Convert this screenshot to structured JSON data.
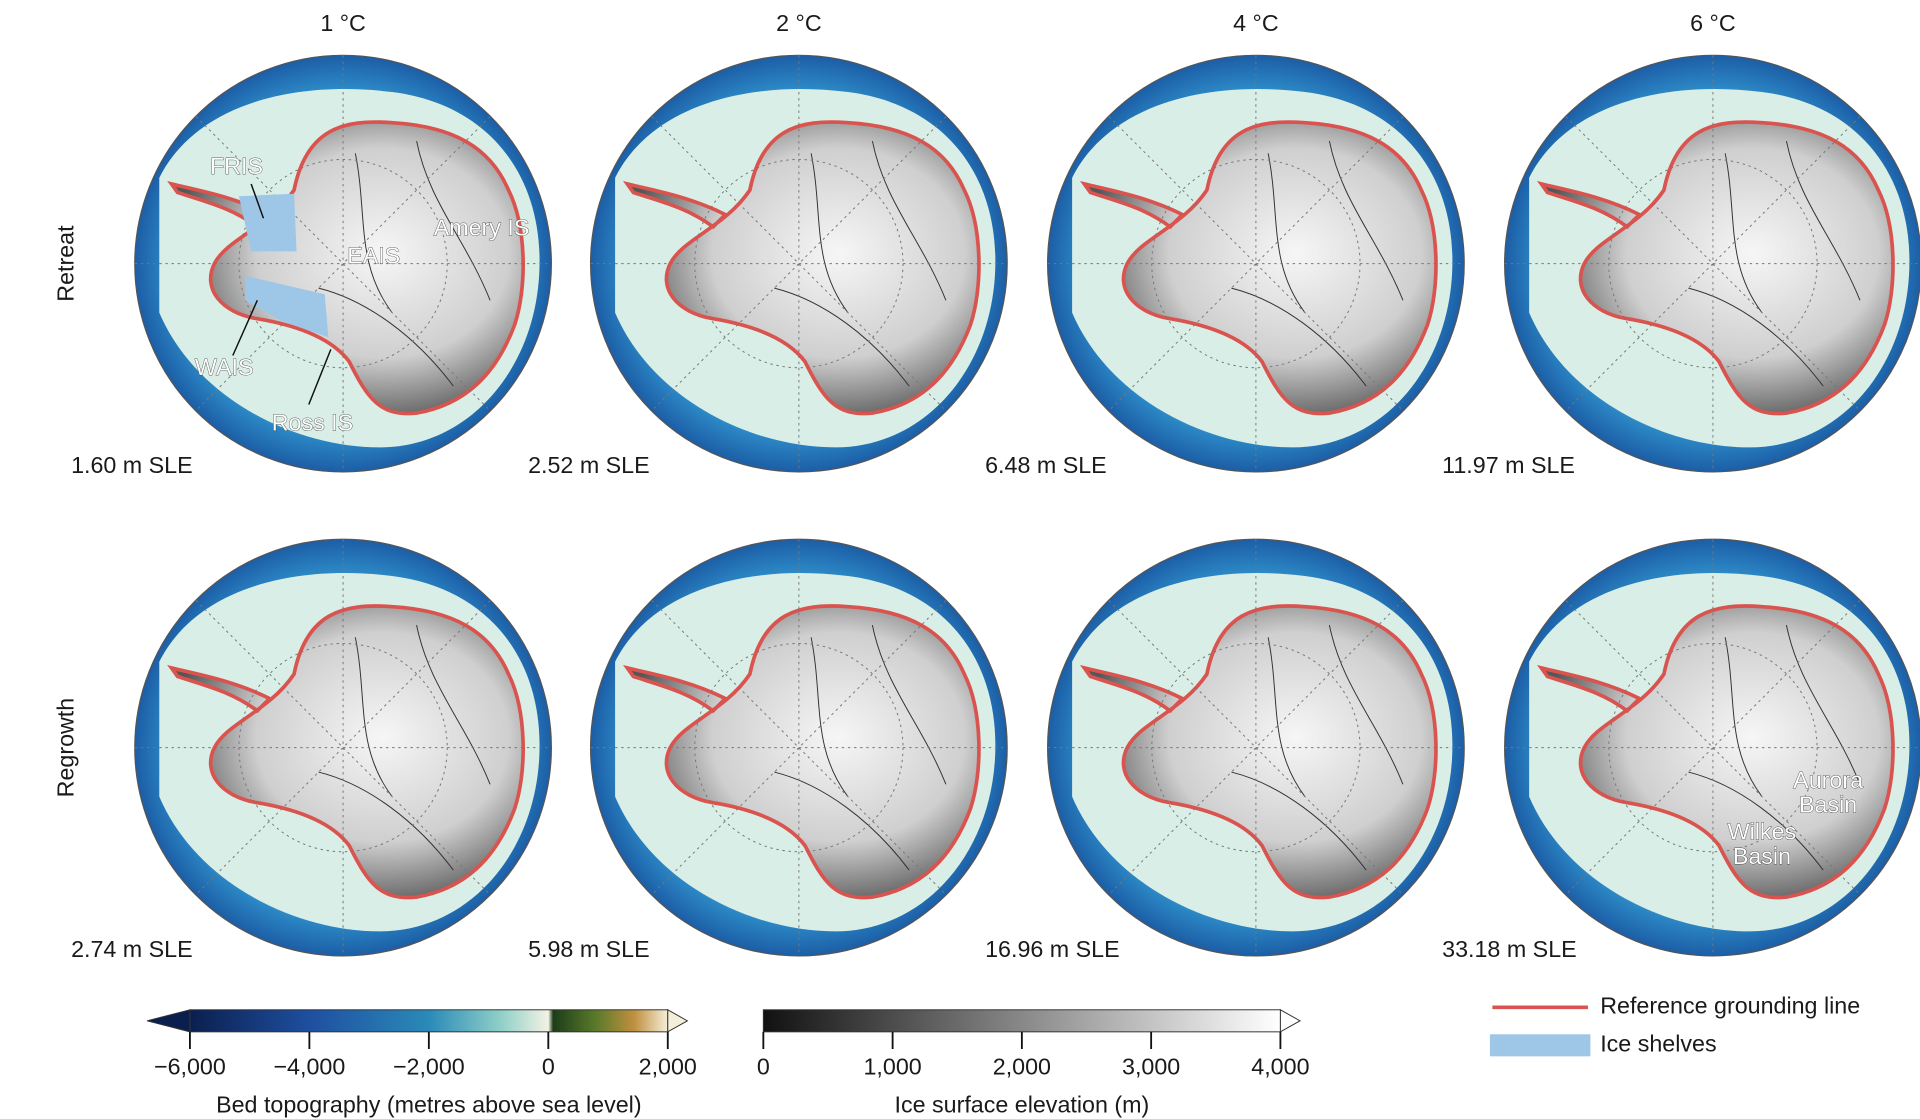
{
  "columns": [
    "1 °C",
    "2 °C",
    "4 °C",
    "6 °C"
  ],
  "rows": [
    {
      "label": "Retreat",
      "panels": [
        "1.60 m SLE",
        "2.52 m SLE",
        "6.48 m SLE",
        "11.97 m SLE"
      ]
    },
    {
      "label": "Regrowth",
      "panels": [
        "2.74 m SLE",
        "5.98 m SLE",
        "16.96 m SLE",
        "33.18 m SLE"
      ]
    }
  ],
  "annotations": {
    "fris": "FRIS",
    "eais": "EAIS",
    "amery": "Amery IS",
    "wais": "WAIS",
    "ross": "Ross IS",
    "aurora": [
      "Aurora",
      "Basin"
    ],
    "wilkes": [
      "Wilkes",
      "Basin"
    ]
  },
  "colorbars": [
    {
      "label": "Bed topography (metres above sea level)",
      "lim": [
        -6000,
        2000
      ],
      "ticks": [
        {
          "value": -6000,
          "label": "−6,000"
        },
        {
          "value": -4000,
          "label": "−4,000"
        },
        {
          "value": -2000,
          "label": "−2,000"
        },
        0,
        {
          "value": 2000,
          "label": "2,000"
        }
      ]
    },
    {
      "label": "Ice surface elevation (m)",
      "lim": [
        0,
        4000
      ],
      "ticks": [
        0,
        {
          "value": 1000,
          "label": "1,000"
        },
        {
          "value": 2000,
          "label": "2,000"
        },
        {
          "value": 3000,
          "label": "3,000"
        },
        {
          "value": 4000,
          "label": "4,000"
        }
      ]
    }
  ],
  "legend": [
    "Reference grounding line",
    "Ice shelves"
  ]
}
